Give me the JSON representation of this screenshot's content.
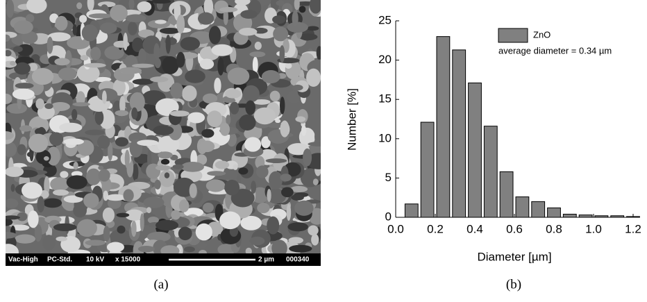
{
  "sem_image": {
    "info": [
      "Vac-High",
      "PC-Std.",
      "10 kV",
      "x 15000"
    ],
    "scale_bar": "2 µm",
    "image_id": "000340"
  },
  "captions": [
    "(a)",
    "(b)"
  ],
  "chart_data": {
    "type": "histogram",
    "bins": [
      0.04,
      0.12,
      0.2,
      0.28,
      0.36,
      0.44,
      0.52,
      0.6,
      0.68,
      0.76,
      0.84,
      0.92,
      1.0,
      1.08,
      1.16,
      1.24
    ],
    "series": [
      {
        "name": "ZnO",
        "color": "#808080",
        "values": [
          1.7,
          12.1,
          23,
          21.3,
          17.1,
          11.6,
          5.8,
          2.6,
          2.0,
          1.2,
          0.4,
          0.3,
          0.2,
          0.2,
          0.1
        ]
      }
    ],
    "annotation": "average diameter = 0.34 µm",
    "x_label": "Diameter [µm]",
    "y_label": "Number [%]",
    "xlim": [
      0,
      1.24
    ],
    "ylim": [
      0,
      25
    ],
    "xticks": [
      {
        "value": 0,
        "label": "0.0"
      },
      0.2,
      0.4,
      0.6,
      0.8,
      {
        "value": 1,
        "label": "1.0"
      },
      1.2
    ],
    "yticks": [
      0,
      5,
      10,
      15,
      20,
      25
    ]
  }
}
